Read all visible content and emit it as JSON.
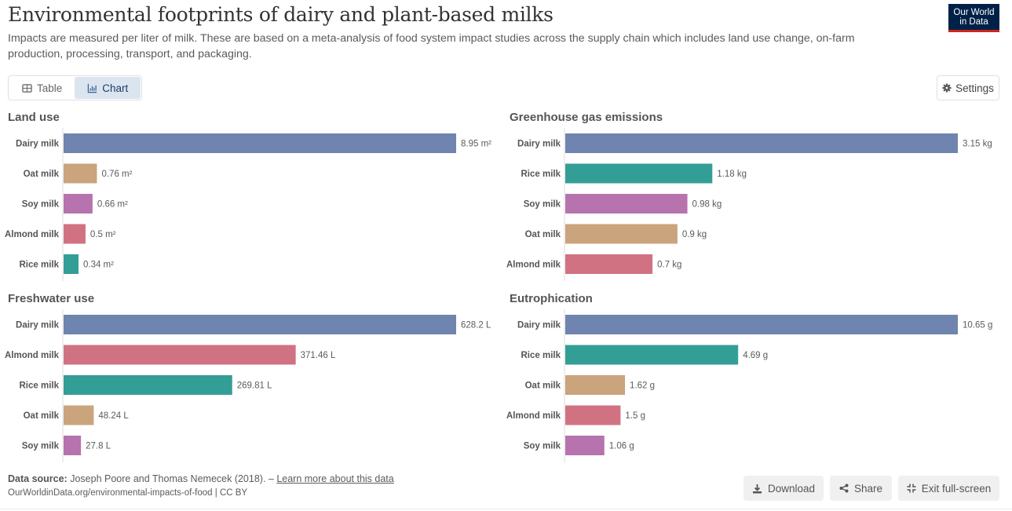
{
  "header": {
    "title": "Environmental footprints of dairy and plant-based milks",
    "subtitle": "Impacts are measured per liter of milk. These are based on a meta-analysis of food system impact studies across the supply chain which includes land use change, on-farm production, processing, transport, and packaging.",
    "logo_line1": "Our World",
    "logo_line2": "in Data"
  },
  "tabs": [
    {
      "label": "Table",
      "icon": "table-icon",
      "active": false
    },
    {
      "label": "Chart",
      "icon": "chart-icon",
      "active": true
    }
  ],
  "settings_label": "Settings",
  "colors": {
    "Dairy milk": "#6f84ae",
    "Oat milk": "#c9a47c",
    "Soy milk": "#b673ae",
    "Almond milk": "#d07282",
    "Rice milk": "#339e95"
  },
  "chart_data": [
    {
      "type": "bar",
      "orientation": "horizontal",
      "title": "Land use",
      "unit": "m²",
      "categories": [
        "Dairy milk",
        "Oat milk",
        "Soy milk",
        "Almond milk",
        "Rice milk"
      ],
      "values": [
        8.95,
        0.76,
        0.66,
        0.5,
        0.34
      ],
      "labels": [
        "8.95 m²",
        "0.76 m²",
        "0.66 m²",
        "0.5 m²",
        "0.34 m²"
      ],
      "xlim": [
        0,
        8.95
      ]
    },
    {
      "type": "bar",
      "orientation": "horizontal",
      "title": "Greenhouse gas emissions",
      "unit": "kg",
      "categories": [
        "Dairy milk",
        "Rice milk",
        "Soy milk",
        "Oat milk",
        "Almond milk"
      ],
      "values": [
        3.15,
        1.18,
        0.98,
        0.9,
        0.7
      ],
      "labels": [
        "3.15 kg",
        "1.18 kg",
        "0.98 kg",
        "0.9 kg",
        "0.7 kg"
      ],
      "xlim": [
        0,
        3.15
      ]
    },
    {
      "type": "bar",
      "orientation": "horizontal",
      "title": "Freshwater use",
      "unit": "L",
      "categories": [
        "Dairy milk",
        "Almond milk",
        "Rice milk",
        "Oat milk",
        "Soy milk"
      ],
      "values": [
        628.2,
        371.46,
        269.81,
        48.24,
        27.8
      ],
      "labels": [
        "628.2 L",
        "371.46 L",
        "269.81 L",
        "48.24 L",
        "27.8 L"
      ],
      "xlim": [
        0,
        628.2
      ]
    },
    {
      "type": "bar",
      "orientation": "horizontal",
      "title": "Eutrophication",
      "unit": "g",
      "categories": [
        "Dairy milk",
        "Rice milk",
        "Oat milk",
        "Almond milk",
        "Soy milk"
      ],
      "values": [
        10.65,
        4.69,
        1.62,
        1.5,
        1.06
      ],
      "labels": [
        "10.65 g",
        "4.69 g",
        "1.62 g",
        "1.5 g",
        "1.06 g"
      ],
      "xlim": [
        0,
        10.65
      ]
    }
  ],
  "footer": {
    "source_label": "Data source:",
    "source_text": " Joseph Poore and Thomas Nemecek (2018). – ",
    "learn_more": "Learn more about this data",
    "url_line": "OurWorldinData.org/environmental-impacts-of-food | CC BY",
    "download_label": "Download",
    "share_label": "Share",
    "exit_fullscreen_label": "Exit full-screen"
  }
}
